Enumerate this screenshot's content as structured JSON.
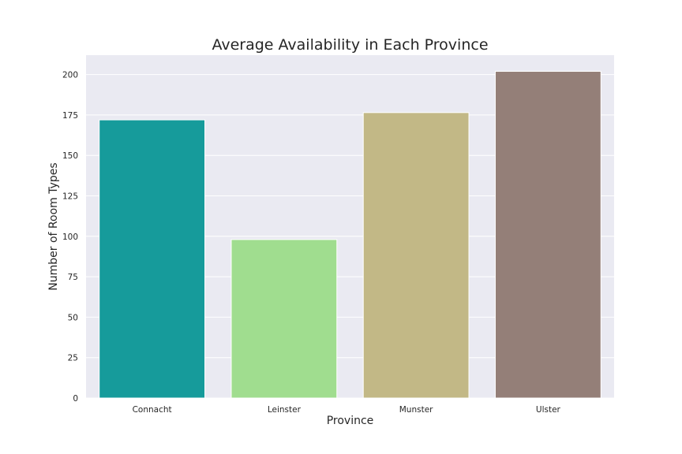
{
  "chart_data": {
    "type": "bar",
    "title": "Average Availability in Each Province",
    "xlabel": "Province",
    "ylabel": "Number of Room Types",
    "categories": [
      "Connacht",
      "Leinster",
      "Munster",
      "Ulster"
    ],
    "values": [
      172,
      98,
      176.5,
      202
    ],
    "colors": [
      "#169b9b",
      "#a0dd8f",
      "#c2b886",
      "#947f78"
    ],
    "ylim": [
      0,
      212
    ],
    "yticks": [
      0,
      25,
      50,
      75,
      100,
      125,
      150,
      175,
      200
    ],
    "grid": true,
    "background": "#eaeaf2"
  }
}
